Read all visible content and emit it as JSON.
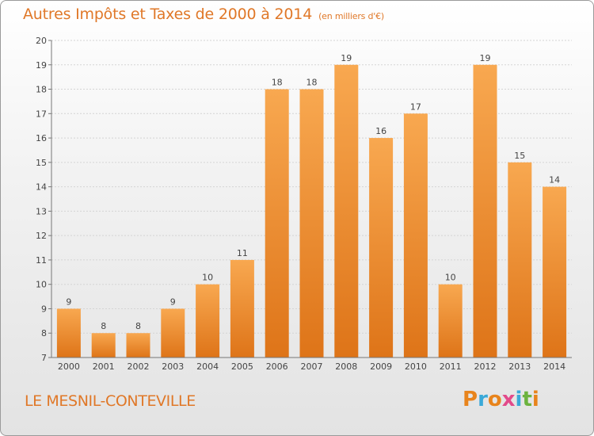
{
  "header": {
    "title": "Autres Impôts et Taxes de 2000 à 2014",
    "unit": "(en milliers d'€)"
  },
  "footer": {
    "commune": "LE MESNIL-CONTEVILLE",
    "brand": "Proxiti"
  },
  "colors": {
    "title": "#e07828",
    "bar_top": "#f8a850",
    "bar_bottom": "#de7418",
    "brand_letters": [
      "#e8841c",
      "#3aa9d8",
      "#e8841c",
      "#e24a8a",
      "#3aa9d8",
      "#6cb33f",
      "#e8841c"
    ]
  },
  "chart_data": {
    "type": "bar",
    "categories": [
      "2000",
      "2001",
      "2002",
      "2003",
      "2004",
      "2005",
      "2006",
      "2007",
      "2008",
      "2009",
      "2010",
      "2011",
      "2012",
      "2013",
      "2014"
    ],
    "values": [
      9,
      8,
      8,
      9,
      10,
      11,
      18,
      18,
      19,
      16,
      17,
      10,
      19,
      15,
      14
    ],
    "data_labels": [
      "9",
      "8",
      "8",
      "9",
      "10",
      "11",
      "18",
      "18",
      "19",
      "16",
      "17",
      "10",
      "19",
      "15",
      "14"
    ],
    "title": "Autres Impôts et Taxes de 2000 à 2014",
    "xlabel": "",
    "ylabel": "",
    "ylim": [
      7,
      20
    ],
    "yticks": [
      7,
      8,
      9,
      10,
      11,
      12,
      13,
      14,
      15,
      16,
      17,
      18,
      19,
      20
    ],
    "grid": true
  }
}
